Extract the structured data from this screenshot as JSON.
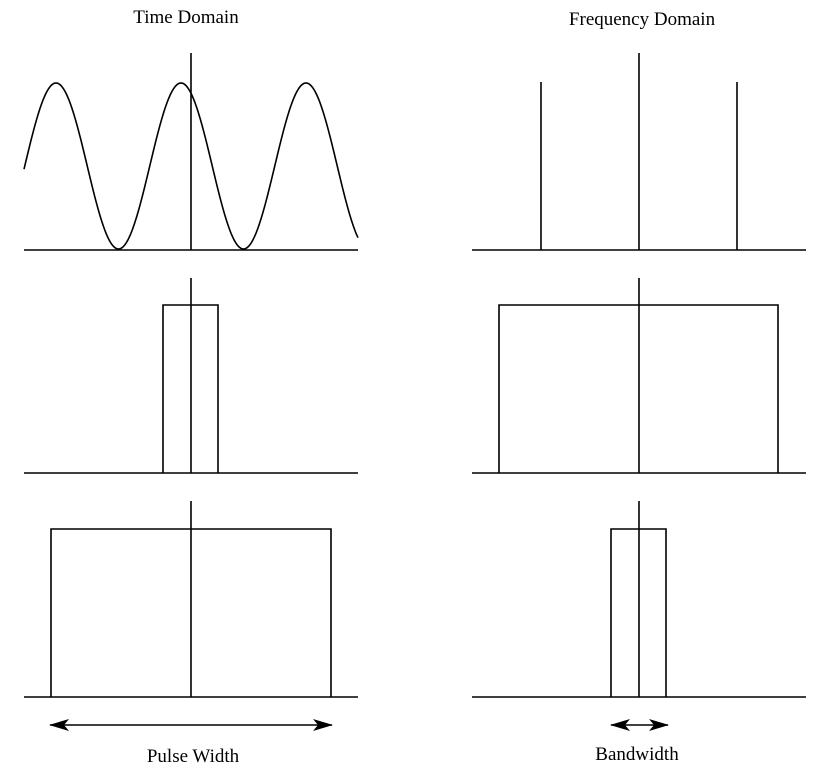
{
  "titles": {
    "time": "Time Domain",
    "frequency": "Frequency Domain"
  },
  "labels": {
    "pulse_width": "Pulse Width",
    "bandwidth": "Bandwidth"
  },
  "rows": [
    {
      "time": {
        "shape": "sine",
        "cycles_visible": 2.7
      },
      "frequency": {
        "shape": "impulses",
        "count": 3
      }
    },
    {
      "time": {
        "shape": "narrow-pulse"
      },
      "frequency": {
        "shape": "wide-rectangle"
      }
    },
    {
      "time": {
        "shape": "wide-pulse"
      },
      "frequency": {
        "shape": "narrow-rectangle"
      }
    }
  ],
  "colors": {
    "line": "#000000",
    "background": "#ffffff"
  }
}
